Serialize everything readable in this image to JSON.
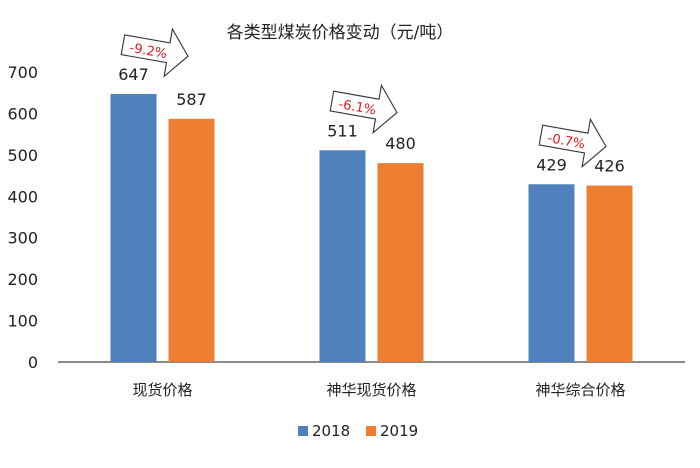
{
  "chart_data": {
    "type": "bar",
    "title": "各类型煤炭价格变动（元/吨）",
    "categories": [
      "现货价格",
      "神华现货价格",
      "神华综合价格"
    ],
    "series": [
      {
        "name": "2018",
        "values": [
          647,
          511,
          429
        ],
        "color": "#4F81BD"
      },
      {
        "name": "2019",
        "values": [
          587,
          480,
          426
        ],
        "color": "#ED7D31"
      }
    ],
    "ylim": [
      0,
      700
    ],
    "yticks": [
      "0",
      "100",
      "200",
      "300",
      "400",
      "500",
      "600",
      "700"
    ],
    "data_labels": [
      [
        "647",
        "511",
        "429"
      ],
      [
        "587",
        "480",
        "426"
      ]
    ],
    "annotations": [
      "-9.2%",
      "-6.1%",
      "-0.7%"
    ],
    "annotation_color": "#E31A1C",
    "grid": false,
    "legend": "bottom",
    "xlabel": "",
    "ylabel": ""
  }
}
